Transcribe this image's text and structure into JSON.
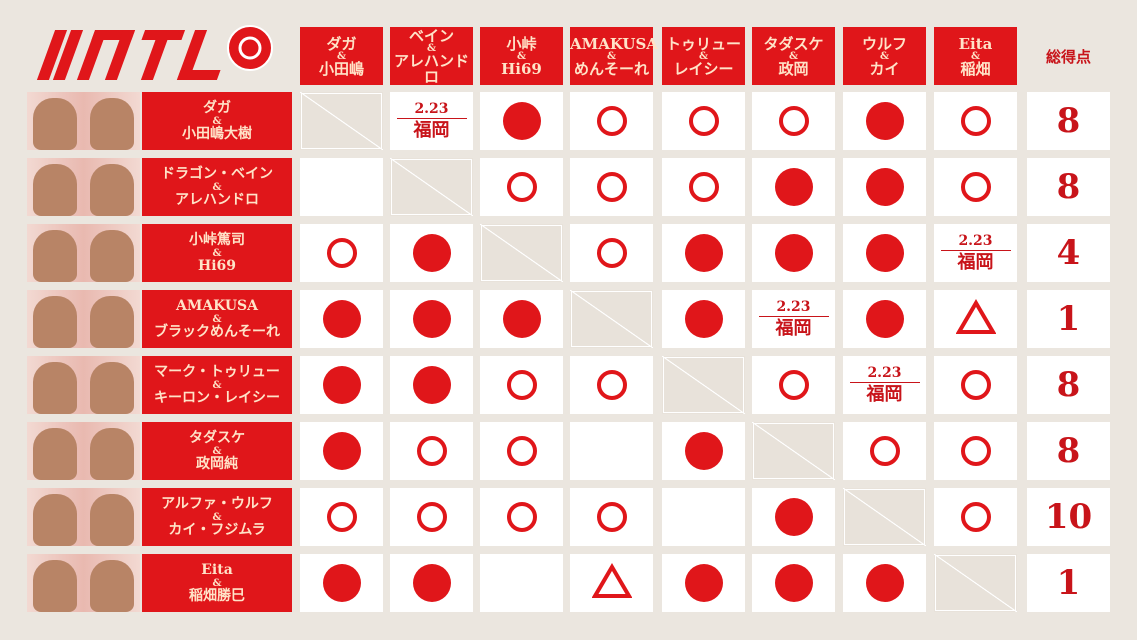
{
  "logo_text": "NJTL",
  "columns": [
    {
      "top": "ダガ",
      "bottom": "小田嶋"
    },
    {
      "top": "ベイン",
      "bottom": "アレハンドロ"
    },
    {
      "top": "小峠",
      "bottom": "Hi69"
    },
    {
      "top": "AMAKUSA",
      "bottom": "めんそーれ"
    },
    {
      "top": "トゥリュー",
      "bottom": "レイシー"
    },
    {
      "top": "タダスケ",
      "bottom": "政岡"
    },
    {
      "top": "ウルフ",
      "bottom": "カイ"
    },
    {
      "top": "Eita",
      "bottom": "稲畑"
    }
  ],
  "amp": "&",
  "total_label": "総得点",
  "date_label": {
    "date": "2.23",
    "place": "福岡"
  },
  "colors": {
    "accent": "#e0161a",
    "background": "#ebe6df"
  },
  "rows": [
    {
      "top": "ダガ",
      "bottom": "小田嶋大樹",
      "results": [
        "self",
        "date",
        "loss",
        "win",
        "win",
        "win",
        "loss",
        "win"
      ],
      "total": "8"
    },
    {
      "top": "ドラゴン・ベイン",
      "bottom": "アレハンドロ",
      "results": [
        "empty",
        "self",
        "win",
        "win",
        "win",
        "loss",
        "loss",
        "win"
      ],
      "total": "8"
    },
    {
      "top": "小峠篤司",
      "bottom": "Hi69",
      "results": [
        "win",
        "loss",
        "self",
        "win",
        "loss",
        "loss",
        "loss",
        "date"
      ],
      "total": "4"
    },
    {
      "top": "AMAKUSA",
      "bottom": "ブラックめんそーれ",
      "results": [
        "loss",
        "loss",
        "loss",
        "self",
        "loss",
        "date",
        "loss",
        "draw"
      ],
      "total": "1"
    },
    {
      "top": "マーク・トゥリュー",
      "bottom": "キーロン・レイシー",
      "results": [
        "loss",
        "loss",
        "win",
        "win",
        "self",
        "win",
        "date",
        "win"
      ],
      "total": "8"
    },
    {
      "top": "タダスケ",
      "bottom": "政岡純",
      "results": [
        "loss",
        "win",
        "win",
        "empty",
        "loss",
        "self",
        "win",
        "win"
      ],
      "total": "8"
    },
    {
      "top": "アルファ・ウルフ",
      "bottom": "カイ・フジムラ",
      "results": [
        "win",
        "win",
        "win",
        "win",
        "empty",
        "loss",
        "self",
        "win"
      ],
      "total": "10"
    },
    {
      "top": "Eita",
      "bottom": "稲畑勝巳",
      "results": [
        "loss",
        "loss",
        "empty",
        "draw",
        "loss",
        "loss",
        "loss",
        "self"
      ],
      "total": "1"
    }
  ]
}
